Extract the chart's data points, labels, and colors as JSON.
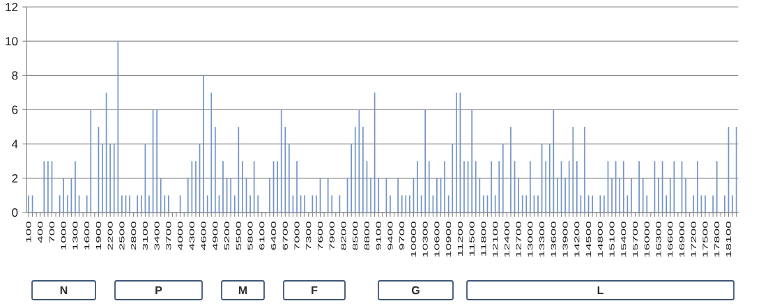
{
  "chart_data": {
    "type": "bar",
    "categories": [
      "100",
      null,
      null,
      "400",
      null,
      null,
      "700",
      null,
      null,
      "1000",
      null,
      null,
      "1300",
      null,
      null,
      "1600",
      null,
      null,
      "1900",
      null,
      null,
      "2200",
      null,
      null,
      "2500",
      null,
      null,
      "2800",
      null,
      null,
      "3100",
      null,
      null,
      "3400",
      null,
      null,
      "3700",
      null,
      null,
      "4000",
      null,
      null,
      "4300",
      null,
      null,
      "4600",
      null,
      null,
      "4900",
      null,
      null,
      "5200",
      null,
      null,
      "5500",
      null,
      null,
      "5800",
      null,
      null,
      "6100",
      null,
      null,
      "6400",
      null,
      null,
      "6700",
      null,
      null,
      "7000",
      null,
      null,
      "7300",
      null,
      null,
      "7600",
      null,
      null,
      "7900",
      null,
      null,
      "8200",
      null,
      null,
      "8500",
      null,
      null,
      "8800",
      null,
      null,
      "9100",
      null,
      null,
      "9400",
      null,
      null,
      "9700",
      null,
      null,
      "10000",
      null,
      null,
      "10300",
      null,
      null,
      "10600",
      null,
      null,
      "10900",
      null,
      null,
      "11200",
      null,
      null,
      "11500",
      null,
      null,
      "11800",
      null,
      null,
      "12100",
      null,
      null,
      "12400",
      null,
      null,
      "12700",
      null,
      null,
      "13000",
      null,
      null,
      "13300",
      null,
      null,
      "13600",
      null,
      null,
      "13900",
      null,
      null,
      "14200",
      null,
      null,
      "14500",
      null,
      null,
      "14800",
      null,
      null,
      "15100",
      null,
      null,
      "15400",
      null,
      null,
      "15700",
      null,
      null,
      "16000",
      null,
      null,
      "16300",
      null,
      null,
      "16600",
      null,
      null,
      "16900",
      null,
      null,
      "17200",
      null,
      null,
      "17500",
      null,
      null,
      "17800",
      null,
      null,
      "18100",
      null,
      null
    ],
    "values": [
      1,
      1,
      0,
      0,
      3,
      3,
      3,
      0,
      1,
      2,
      1,
      2,
      3,
      1,
      0,
      1,
      6,
      0,
      5,
      4,
      7,
      4,
      4,
      10,
      1,
      1,
      1,
      0,
      1,
      1,
      4,
      1,
      6,
      6,
      2,
      1,
      1,
      0,
      0,
      1,
      0,
      2,
      3,
      3,
      4,
      8,
      1,
      7,
      5,
      1,
      3,
      2,
      2,
      1,
      5,
      3,
      2,
      1,
      3,
      1,
      0,
      0,
      2,
      3,
      3,
      6,
      5,
      4,
      1,
      3,
      1,
      1,
      0,
      1,
      1,
      2,
      0,
      2,
      1,
      0,
      1,
      0,
      2,
      4,
      5,
      6,
      5,
      3,
      2,
      7,
      2,
      0,
      2,
      1,
      0,
      2,
      1,
      1,
      1,
      2,
      3,
      1,
      6,
      3,
      1,
      2,
      2,
      3,
      1,
      4,
      7,
      7,
      3,
      3,
      6,
      3,
      2,
      1,
      1,
      3,
      1,
      3,
      4,
      0,
      5,
      3,
      2,
      1,
      1,
      3,
      1,
      1,
      4,
      3,
      4,
      6,
      2,
      3,
      2,
      3,
      5,
      3,
      1,
      5,
      1,
      1,
      0,
      1,
      1,
      3,
      2,
      3,
      2,
      3,
      1,
      2,
      0,
      3,
      2,
      1,
      0,
      3,
      2,
      3,
      1,
      2,
      3,
      0,
      3,
      2,
      0,
      1,
      3,
      1,
      1,
      0,
      1,
      3,
      0,
      1,
      5,
      1,
      5
    ],
    "color": "#7394c9",
    "ylim": [
      0,
      12
    ],
    "yticks": [
      0,
      2,
      4,
      6,
      8,
      10,
      12
    ],
    "grid": "y",
    "annotations": [
      "N",
      "P",
      "M",
      "F",
      "G",
      "L"
    ]
  }
}
